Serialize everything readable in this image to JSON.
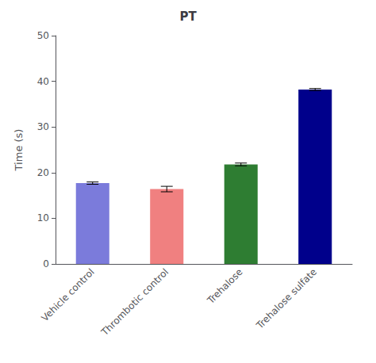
{
  "chart_data": {
    "type": "bar",
    "title": "PT",
    "ylabel": "Time (s)",
    "categories": [
      "Vehicle control",
      "Thrombotic control",
      "Trehalose",
      "Trehalose sulfate"
    ],
    "values": [
      17.7,
      16.4,
      21.8,
      38.2
    ],
    "errors": [
      0.25,
      0.6,
      0.3,
      0.22
    ],
    "colors": [
      "#7b7bdb",
      "#f08080",
      "#2e7d32",
      "#00008b"
    ],
    "ylim": [
      0,
      50
    ],
    "yticks": [
      0,
      10,
      20,
      30,
      40,
      50
    ],
    "grid": false
  }
}
